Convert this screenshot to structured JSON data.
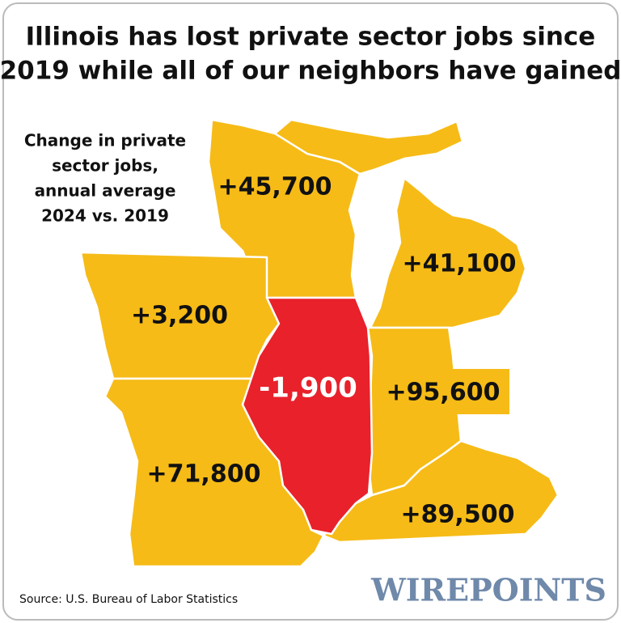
{
  "header": {
    "title_lines": [
      "Illinois has lost private sector jobs since",
      "2019 while all of our neighbors have gained"
    ]
  },
  "legend": {
    "lines": [
      "Change in private",
      "sector jobs,",
      "annual average",
      "2024 vs. 2019"
    ]
  },
  "regions": [
    {
      "label": "+45,700"
    },
    {
      "label": "+41,100"
    },
    {
      "label": "+3,200"
    },
    {
      "label": "-1,900"
    },
    {
      "label": "+95,600"
    },
    {
      "label": "+71,800"
    },
    {
      "label": "+89,500"
    }
  ],
  "footer": {
    "source": "Source: U.S. Bureau of Labor Statistics",
    "brand": "WIREPOINTS"
  }
}
